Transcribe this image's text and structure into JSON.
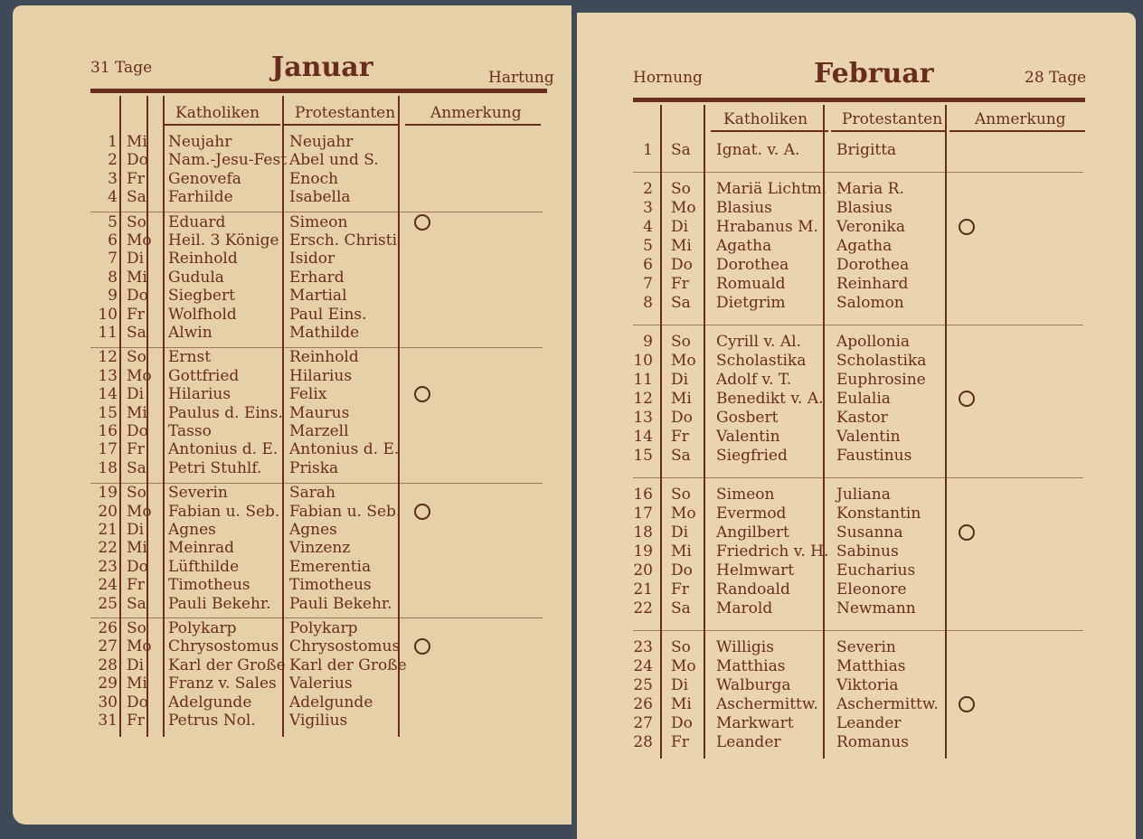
{
  "pages": [
    {
      "header": {
        "days": "31 Tage",
        "month": "Januar",
        "old_name": "Hartung"
      },
      "columns": {
        "catholic": "Katholiken",
        "protestant": "Protestanten",
        "remark": "Anmerkung"
      },
      "weeks": [
        [
          {
            "day": "1",
            "weekday": "Mi",
            "catholic": "Neujahr",
            "protestant": "Neujahr"
          },
          {
            "day": "2",
            "weekday": "Do",
            "catholic": "Nam.-Jesu-Fest",
            "protestant": "Abel und S."
          },
          {
            "day": "3",
            "weekday": "Fr",
            "catholic": "Genovefa",
            "protestant": "Enoch"
          },
          {
            "day": "4",
            "weekday": "Sa",
            "catholic": "Farhilde",
            "protestant": "Isabella"
          }
        ],
        [
          {
            "day": "5",
            "weekday": "So",
            "catholic": "Eduard",
            "protestant": "Simeon"
          },
          {
            "day": "6",
            "weekday": "Mo",
            "catholic": "Heil. 3 Könige",
            "protestant": "Ersch. Christi"
          },
          {
            "day": "7",
            "weekday": "Di",
            "catholic": "Reinhold",
            "protestant": "Isidor"
          },
          {
            "day": "8",
            "weekday": "Mi",
            "catholic": "Gudula",
            "protestant": "Erhard"
          },
          {
            "day": "9",
            "weekday": "Do",
            "catholic": "Siegbert",
            "protestant": "Martial"
          },
          {
            "day": "10",
            "weekday": "Fr",
            "catholic": "Wolfhold",
            "protestant": "Paul Eins."
          },
          {
            "day": "11",
            "weekday": "Sa",
            "catholic": "Alwin",
            "protestant": "Mathilde"
          }
        ],
        [
          {
            "day": "12",
            "weekday": "So",
            "catholic": "Ernst",
            "protestant": "Reinhold"
          },
          {
            "day": "13",
            "weekday": "Mo",
            "catholic": "Gottfried",
            "protestant": "Hilarius"
          },
          {
            "day": "14",
            "weekday": "Di",
            "catholic": "Hilarius",
            "protestant": "Felix"
          },
          {
            "day": "15",
            "weekday": "Mi",
            "catholic": "Paulus d. Eins.",
            "protestant": "Maurus"
          },
          {
            "day": "16",
            "weekday": "Do",
            "catholic": "Tasso",
            "protestant": "Marzell"
          },
          {
            "day": "17",
            "weekday": "Fr",
            "catholic": "Antonius d. E.",
            "protestant": "Antonius d. E."
          },
          {
            "day": "18",
            "weekday": "Sa",
            "catholic": "Petri Stuhlf.",
            "protestant": "Priska"
          }
        ],
        [
          {
            "day": "19",
            "weekday": "So",
            "catholic": "Severin",
            "protestant": "Sarah"
          },
          {
            "day": "20",
            "weekday": "Mo",
            "catholic": "Fabian u. Seb.",
            "protestant": "Fabian u. Seb."
          },
          {
            "day": "21",
            "weekday": "Di",
            "catholic": "Agnes",
            "protestant": "Agnes"
          },
          {
            "day": "22",
            "weekday": "Mi",
            "catholic": "Meinrad",
            "protestant": "Vinzenz"
          },
          {
            "day": "23",
            "weekday": "Do",
            "catholic": "Lüfthilde",
            "protestant": "Emerentia"
          },
          {
            "day": "24",
            "weekday": "Fr",
            "catholic": "Timotheus",
            "protestant": "Timotheus"
          },
          {
            "day": "25",
            "weekday": "Sa",
            "catholic": "Pauli Bekehr.",
            "protestant": "Pauli Bekehr."
          }
        ],
        [
          {
            "day": "26",
            "weekday": "So",
            "catholic": "Polykarp",
            "protestant": "Polykarp"
          },
          {
            "day": "27",
            "weekday": "Mo",
            "catholic": "Chrysostomus",
            "protestant": "Chrysostomus"
          },
          {
            "day": "28",
            "weekday": "Di",
            "catholic": "Karl der Große",
            "protestant": "Karl der Große"
          },
          {
            "day": "29",
            "weekday": "Mi",
            "catholic": "Franz v. Sales",
            "protestant": "Valerius"
          },
          {
            "day": "30",
            "weekday": "Do",
            "catholic": "Adelgunde",
            "protestant": "Adelgunde"
          },
          {
            "day": "31",
            "weekday": "Fr",
            "catholic": "Petrus Nol.",
            "protestant": "Vigilius"
          }
        ]
      ]
    },
    {
      "header": {
        "days": "28 Tage",
        "month": "Februar",
        "old_name": "Hornung"
      },
      "columns": {
        "catholic": "Katholiken",
        "protestant": "Protestanten",
        "remark": "Anmerkung"
      },
      "weeks": [
        [
          {
            "day": "1",
            "weekday": "Sa",
            "catholic": "Ignat. v. A.",
            "protestant": "Brigitta"
          }
        ],
        [
          {
            "day": "2",
            "weekday": "So",
            "catholic": "Mariä Lichtm.",
            "protestant": "Maria R."
          },
          {
            "day": "3",
            "weekday": "Mo",
            "catholic": "Blasius",
            "protestant": "Blasius"
          },
          {
            "day": "4",
            "weekday": "Di",
            "catholic": "Hrabanus M.",
            "protestant": "Veronika"
          },
          {
            "day": "5",
            "weekday": "Mi",
            "catholic": "Agatha",
            "protestant": "Agatha"
          },
          {
            "day": "6",
            "weekday": "Do",
            "catholic": "Dorothea",
            "protestant": "Dorothea"
          },
          {
            "day": "7",
            "weekday": "Fr",
            "catholic": "Romuald",
            "protestant": "Reinhard"
          },
          {
            "day": "8",
            "weekday": "Sa",
            "catholic": "Dietgrim",
            "protestant": "Salomon"
          }
        ],
        [
          {
            "day": "9",
            "weekday": "So",
            "catholic": "Cyrill v. Al.",
            "protestant": "Apollonia"
          },
          {
            "day": "10",
            "weekday": "Mo",
            "catholic": "Scholastika",
            "protestant": "Scholastika"
          },
          {
            "day": "11",
            "weekday": "Di",
            "catholic": "Adolf v. T.",
            "protestant": "Euphrosine"
          },
          {
            "day": "12",
            "weekday": "Mi",
            "catholic": "Benedikt v. A.",
            "protestant": "Eulalia"
          },
          {
            "day": "13",
            "weekday": "Do",
            "catholic": "Gosbert",
            "protestant": "Kastor"
          },
          {
            "day": "14",
            "weekday": "Fr",
            "catholic": "Valentin",
            "protestant": "Valentin"
          },
          {
            "day": "15",
            "weekday": "Sa",
            "catholic": "Siegfried",
            "protestant": "Faustinus"
          }
        ],
        [
          {
            "day": "16",
            "weekday": "So",
            "catholic": "Simeon",
            "protestant": "Juliana"
          },
          {
            "day": "17",
            "weekday": "Mo",
            "catholic": "Evermod",
            "protestant": "Konstantin"
          },
          {
            "day": "18",
            "weekday": "Di",
            "catholic": "Angilbert",
            "protestant": "Susanna"
          },
          {
            "day": "19",
            "weekday": "Mi",
            "catholic": "Friedrich v. H.",
            "protestant": "Sabinus"
          },
          {
            "day": "20",
            "weekday": "Do",
            "catholic": "Helmwart",
            "protestant": "Eucharius"
          },
          {
            "day": "21",
            "weekday": "Fr",
            "catholic": "Randoald",
            "protestant": "Eleonore"
          },
          {
            "day": "22",
            "weekday": "Sa",
            "catholic": "Marold",
            "protestant": "Newmann"
          }
        ],
        [
          {
            "day": "23",
            "weekday": "So",
            "catholic": "Willigis",
            "protestant": "Severin"
          },
          {
            "day": "24",
            "weekday": "Mo",
            "catholic": "Matthias",
            "protestant": "Matthias"
          },
          {
            "day": "25",
            "weekday": "Di",
            "catholic": "Walburga",
            "protestant": "Viktoria"
          },
          {
            "day": "26",
            "weekday": "Mi",
            "catholic": "Aschermittw.",
            "protestant": "Aschermittw."
          },
          {
            "day": "27",
            "weekday": "Do",
            "catholic": "Markwart",
            "protestant": "Leander"
          },
          {
            "day": "28",
            "weekday": "Fr",
            "catholic": "Leander",
            "protestant": "Romanus"
          }
        ]
      ]
    }
  ]
}
